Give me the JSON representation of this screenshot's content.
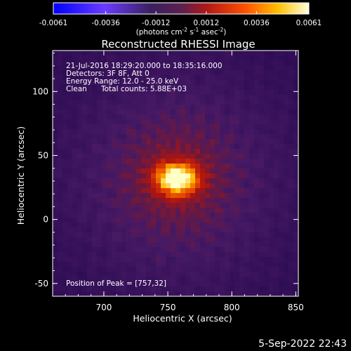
{
  "chart_data": {
    "type": "heatmap",
    "title": "Reconstructed RHESSI Image",
    "xlabel": "Heliocentric X (arcsec)",
    "ylabel": "Heliocentric Y (arcsec)",
    "xlim": [
      660,
      852
    ],
    "ylim": [
      -60,
      132
    ],
    "x_ticks": [
      700,
      750,
      800,
      850
    ],
    "y_ticks": [
      -50,
      0,
      50,
      100
    ],
    "colorbar": {
      "ticks": [
        "-0.0061",
        "-0.0036",
        "-0.0012",
        "0.0012",
        "0.0036",
        "0.0061"
      ],
      "range": [
        -0.0061,
        0.0061
      ],
      "label_parts": [
        "(photons cm",
        "-2",
        " s",
        "-1",
        " asec",
        "-2",
        ")"
      ]
    },
    "annotations": [
      "21-Jul-2016 18:29:20.000 to 18:35:16.000",
      "Detectors: 3F 8F, Att 0",
      "Energy Range: 12.0 - 25.0 keV",
      "Clean",
      "Total counts: 5.88E+03"
    ],
    "peak_label": "Position of Peak = [757,32]",
    "peak": [
      757,
      32
    ],
    "source_peak_value": 0.0061
  },
  "footer_timestamp": "5-Sep-2022 22:43"
}
